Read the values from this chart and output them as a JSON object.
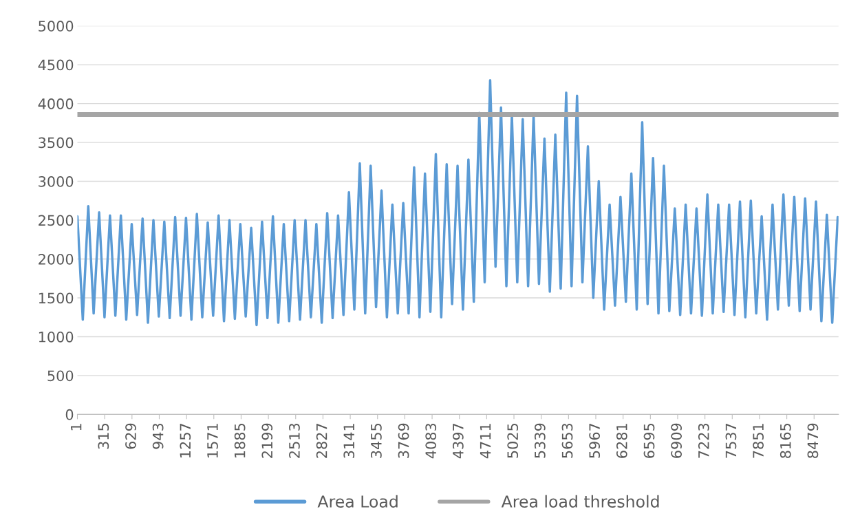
{
  "chart_data": {
    "type": "line",
    "xlim": [
      1,
      8760
    ],
    "xticks": [
      1,
      315,
      629,
      943,
      1257,
      1571,
      1885,
      2199,
      2513,
      2827,
      3141,
      3455,
      3769,
      4083,
      4397,
      4711,
      5025,
      5339,
      5653,
      5967,
      6281,
      6595,
      6909,
      7223,
      7537,
      7851,
      8165,
      8479
    ],
    "ylim": [
      0,
      5000
    ],
    "yticks": [
      0,
      500,
      1000,
      1500,
      2000,
      2500,
      3000,
      3500,
      4000,
      4500,
      5000
    ],
    "grid": "y",
    "legend": "bottom",
    "marker": "none",
    "line_style": "solid",
    "series": [
      {
        "name": "Area Load",
        "color": "#5b9bd5",
        "x": [
          1,
          63,
          126,
          188,
          251,
          313,
          376,
          438,
          501,
          563,
          626,
          688,
          751,
          813,
          876,
          938,
          1001,
          1063,
          1126,
          1188,
          1251,
          1313,
          1376,
          1438,
          1501,
          1563,
          1626,
          1688,
          1751,
          1813,
          1876,
          1938,
          2001,
          2063,
          2126,
          2188,
          2251,
          2313,
          2376,
          2438,
          2501,
          2563,
          2626,
          2688,
          2751,
          2813,
          2876,
          2938,
          3001,
          3063,
          3126,
          3188,
          3251,
          3313,
          3376,
          3438,
          3501,
          3563,
          3626,
          3688,
          3751,
          3813,
          3876,
          3938,
          4001,
          4063,
          4126,
          4188,
          4251,
          4313,
          4376,
          4438,
          4501,
          4563,
          4626,
          4688,
          4751,
          4813,
          4876,
          4938,
          5001,
          5063,
          5126,
          5188,
          5251,
          5313,
          5376,
          5438,
          5501,
          5563,
          5626,
          5688,
          5751,
          5813,
          5876,
          5938,
          6001,
          6063,
          6126,
          6188,
          6251,
          6313,
          6376,
          6438,
          6501,
          6563,
          6626,
          6688,
          6751,
          6813,
          6876,
          6938,
          7001,
          7063,
          7126,
          7188,
          7251,
          7313,
          7376,
          7438,
          7501,
          7563,
          7626,
          7688,
          7751,
          7813,
          7876,
          7938,
          8001,
          8063,
          8126,
          8188,
          8251,
          8313,
          8376,
          8438,
          8501,
          8563,
          8626,
          8688,
          8751
        ],
        "values": [
          2550,
          1220,
          2680,
          1300,
          2600,
          1250,
          2560,
          1270,
          2560,
          1220,
          2450,
          1280,
          2520,
          1180,
          2500,
          1260,
          2480,
          1240,
          2540,
          1270,
          2530,
          1220,
          2580,
          1250,
          2470,
          1270,
          2560,
          1200,
          2500,
          1230,
          2450,
          1260,
          2400,
          1150,
          2480,
          1240,
          2550,
          1180,
          2450,
          1200,
          2500,
          1220,
          2500,
          1250,
          2450,
          1180,
          2590,
          1240,
          2560,
          1280,
          2860,
          1350,
          3230,
          1300,
          3200,
          1380,
          2880,
          1250,
          2700,
          1300,
          2720,
          1300,
          3180,
          1250,
          3100,
          1320,
          3350,
          1250,
          3220,
          1420,
          3200,
          1350,
          3280,
          1450,
          3880,
          1700,
          4300,
          1900,
          3950,
          1650,
          3850,
          1700,
          3800,
          1650,
          3850,
          1680,
          3550,
          1580,
          3600,
          1620,
          4140,
          1650,
          4100,
          1700,
          3450,
          1500,
          3000,
          1350,
          2700,
          1400,
          2800,
          1450,
          3100,
          1350,
          3760,
          1420,
          3300,
          1300,
          3200,
          1330,
          2650,
          1280,
          2700,
          1300,
          2650,
          1270,
          2830,
          1300,
          2700,
          1320,
          2700,
          1280,
          2740,
          1250,
          2750,
          1300,
          2550,
          1220,
          2700,
          1350,
          2830,
          1400,
          2800,
          1330,
          2780,
          1350,
          2740,
          1200,
          2570,
          1180,
          2540
        ]
      }
    ],
    "ref_lines": [
      {
        "axis": "y",
        "value": 3860,
        "label": "Area load threshold",
        "color": "#a5a5a5",
        "line_style": "solid"
      }
    ]
  }
}
